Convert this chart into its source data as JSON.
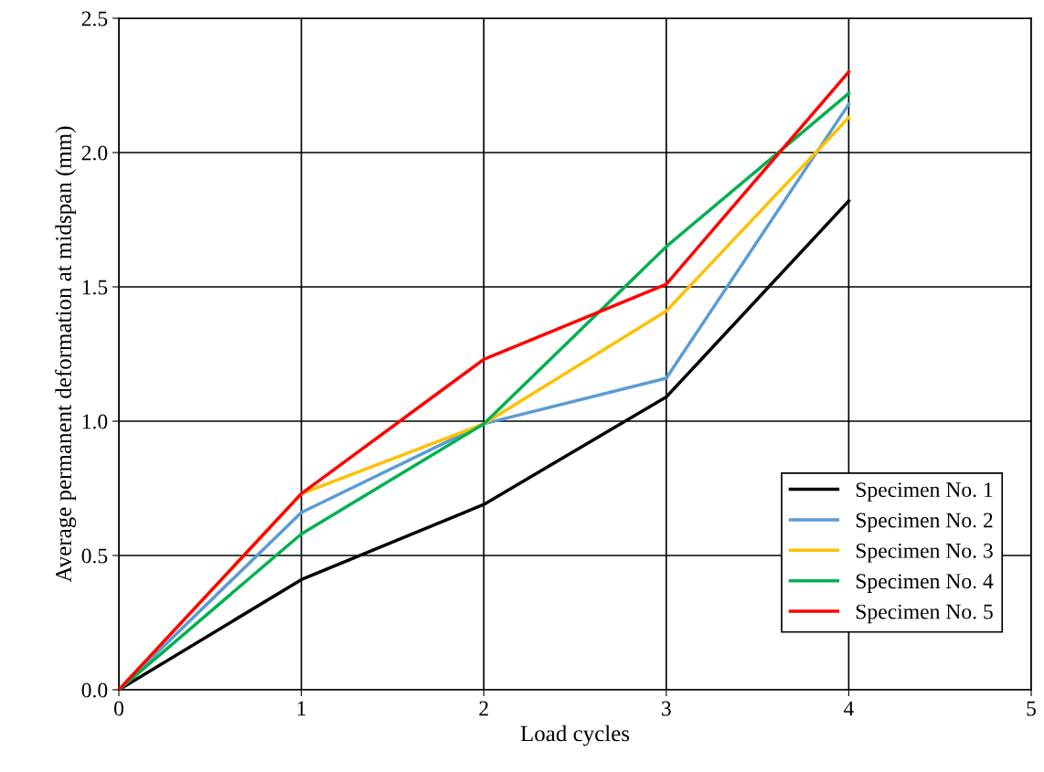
{
  "chart_data": {
    "type": "line",
    "xlabel": "Load cycles",
    "ylabel": "Average permanent deformation at midspan (mm)",
    "x": [
      0,
      1,
      2,
      3,
      4
    ],
    "series": [
      {
        "name": "Specimen No. 1",
        "color": "#000000",
        "values": [
          0,
          0.41,
          0.69,
          1.09,
          1.82
        ]
      },
      {
        "name": "Specimen No. 2",
        "color": "#5b9bd5",
        "values": [
          0,
          0.66,
          0.99,
          1.16,
          2.18
        ]
      },
      {
        "name": "Specimen No. 3",
        "color": "#ffc000",
        "values": [
          0,
          0.73,
          0.99,
          1.41,
          2.13
        ]
      },
      {
        "name": "Specimen No. 4",
        "color": "#00b050",
        "values": [
          0,
          0.58,
          0.99,
          1.65,
          2.22
        ]
      },
      {
        "name": "Specimen No. 5",
        "color": "#ff0000",
        "values": [
          0,
          0.73,
          1.23,
          1.51,
          2.3
        ]
      }
    ],
    "xlim": [
      0,
      5
    ],
    "xticks": [
      0,
      1,
      2,
      3,
      4,
      5
    ],
    "ylim": [
      0,
      2.5
    ],
    "yticks": [
      {
        "value": 0,
        "label": "0.0"
      },
      {
        "value": 0.5,
        "label": "0.5"
      },
      {
        "value": 1,
        "label": "1.0"
      },
      {
        "value": 1.5,
        "label": "1.5"
      },
      {
        "value": 2,
        "label": "2.0"
      },
      {
        "value": 2.5,
        "label": "2.5"
      }
    ],
    "grid": true,
    "legend": "lower right",
    "marker": "none",
    "line_style": "solid"
  }
}
